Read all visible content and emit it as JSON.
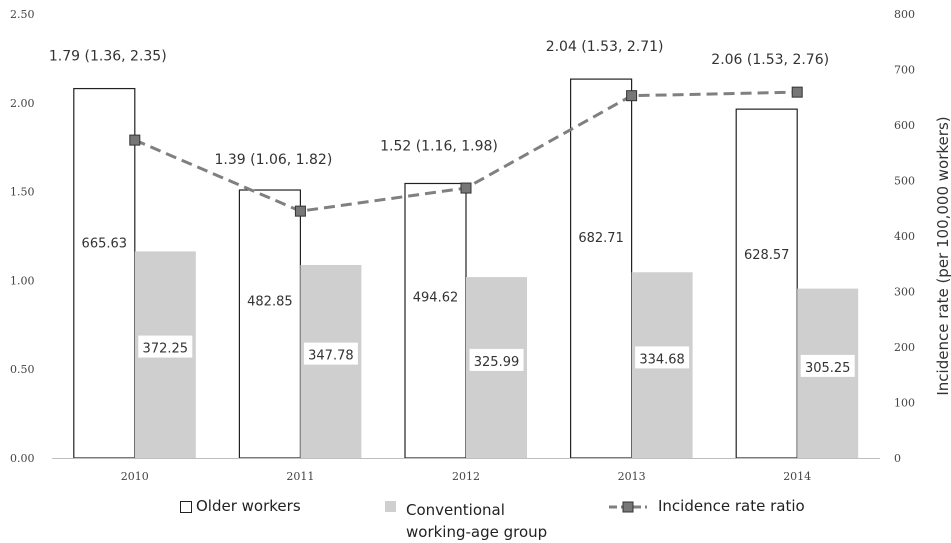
{
  "chart_data": {
    "type": "bar",
    "categories": [
      "2010",
      "2011",
      "2012",
      "2013",
      "2014"
    ],
    "ylim_left": [
      0,
      2.5
    ],
    "yticks_left": [
      "0.00",
      "0.50",
      "1.00",
      "1.50",
      "2.00",
      "2.50"
    ],
    "ylim_right": [
      0,
      800
    ],
    "yticks_right": [
      "0",
      "100",
      "200",
      "300",
      "400",
      "500",
      "600",
      "700",
      "800"
    ],
    "ylabel_right": "Incidence rate (per 100,000 workers)",
    "grid": false,
    "legend_position": "bottom",
    "series": [
      {
        "name": "Older workers",
        "axis": "right",
        "type": "bar",
        "values": [
          665.63,
          482.85,
          494.62,
          682.71,
          628.57
        ],
        "labels": [
          "665.63",
          "482.85",
          "494.62",
          "682.71",
          "628.57"
        ],
        "fill": "#ffffff",
        "stroke": "#222222"
      },
      {
        "name": "Conventional working-age group",
        "name_lines": [
          "Conventional",
          "working-age group"
        ],
        "axis": "right",
        "type": "bar",
        "values": [
          372.25,
          347.78,
          325.99,
          334.68,
          305.25
        ],
        "labels": [
          "372.25",
          "347.78",
          "325.99",
          "334.68",
          "305.25"
        ],
        "fill": "#d0cfcf"
      },
      {
        "name": "Incidence rate ratio",
        "axis": "left",
        "type": "line",
        "values": [
          1.79,
          1.39,
          1.52,
          2.04,
          2.06
        ],
        "labels": [
          "1.79 (1.36, 2.35)",
          "1.39 (1.06, 1.82)",
          "1.52 (1.16, 1.98)",
          "2.04 (1.53, 2.71)",
          "2.06 (1.53, 2.76)"
        ],
        "line_color": "#808080",
        "marker_color": "#777777",
        "line_style": "dashed",
        "marker": "square"
      }
    ]
  }
}
